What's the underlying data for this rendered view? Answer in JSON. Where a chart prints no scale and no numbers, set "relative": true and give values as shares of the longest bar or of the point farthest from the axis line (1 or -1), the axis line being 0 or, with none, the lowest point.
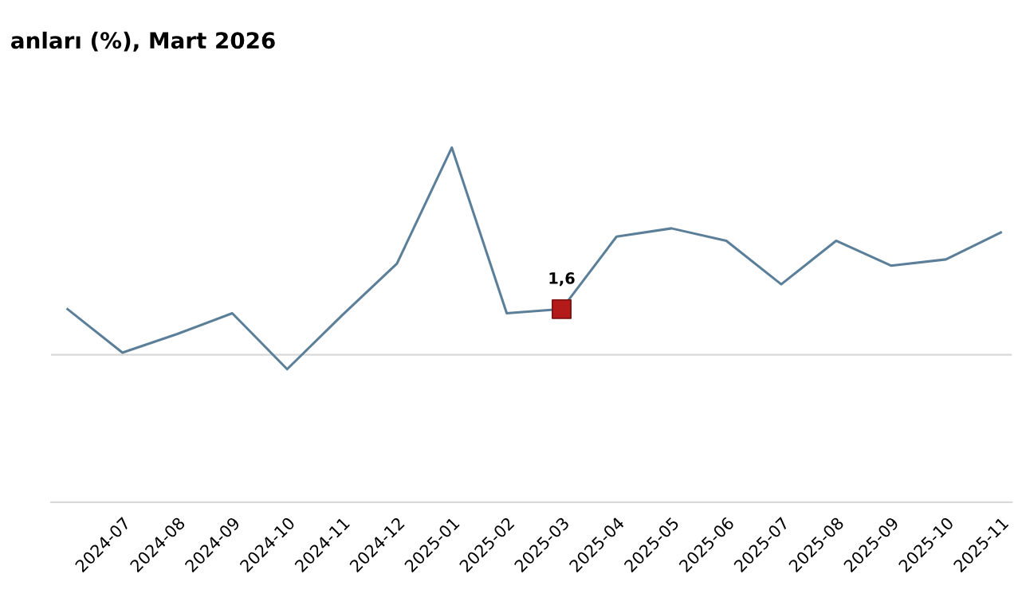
{
  "chart_data": {
    "type": "line",
    "title": "anları (%), Mart 2026",
    "relative": true,
    "categories": [
      null,
      "2024-07",
      "2024-08",
      "2024-09",
      "2024-10",
      "2024-11",
      "2024-12",
      "2025-01",
      "2025-02",
      "2025-03",
      "2025-04",
      "2025-05",
      "2025-06",
      "2025-07",
      "2025-08",
      "2025-09",
      "2025-10",
      "2025-11"
    ],
    "series": [
      {
        "color": "#5b7f98",
        "marker": "none",
        "values": [
          0.22,
          0.01,
          0.1,
          0.2,
          -0.07,
          0.19,
          0.44,
          1,
          0.2,
          0.22,
          0.57,
          0.61,
          0.55,
          0.34,
          0.55,
          0.43,
          0.46,
          0.59
        ]
      },
      {
        "type": "scatter",
        "color": "#b31b1b",
        "marker": "square",
        "values": [
          null,
          null,
          null,
          null,
          null,
          null,
          null,
          null,
          null,
          0.22,
          null,
          null,
          null,
          null,
          null,
          null,
          null,
          null
        ]
      }
    ],
    "annotations": [
      "1,6"
    ],
    "grid": false,
    "legend": false
  }
}
